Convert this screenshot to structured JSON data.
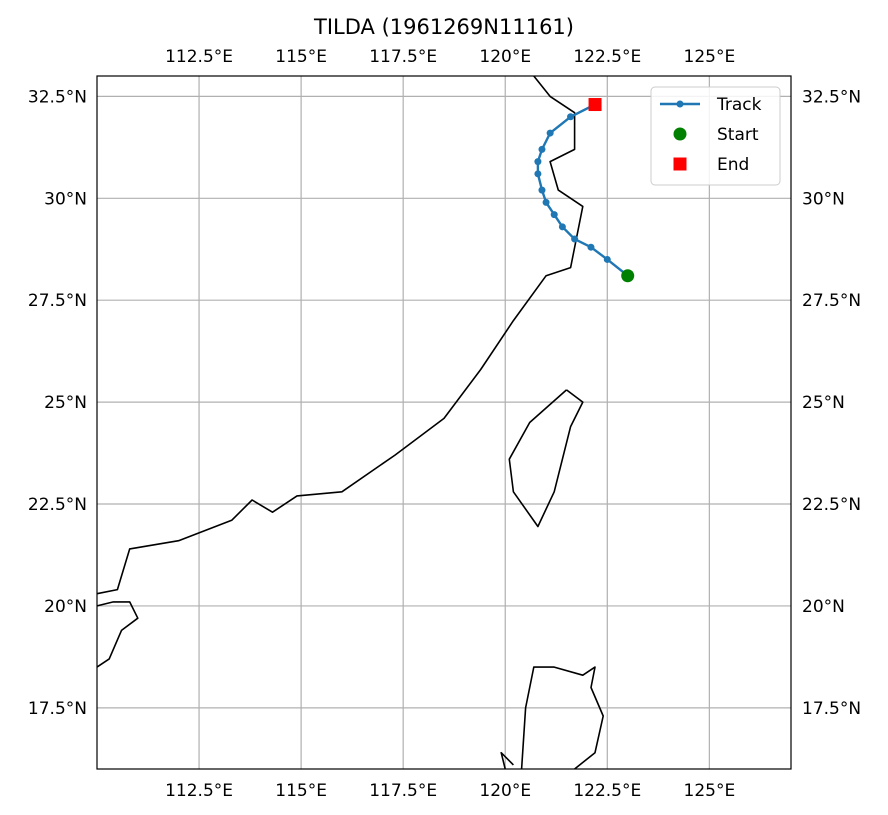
{
  "title": "TILDA (1961269N11161)",
  "chart_data": {
    "type": "map-track",
    "title": "TILDA (1961269N11161)",
    "xlim": [
      110.0,
      127.0
    ],
    "ylim": [
      16.0,
      33.0
    ],
    "grid": true,
    "legend_position": "top-right",
    "x_ticks": [
      {
        "value": 112.5,
        "label": "112.5°E"
      },
      {
        "value": 115.0,
        "label": "115°E"
      },
      {
        "value": 117.5,
        "label": "117.5°E"
      },
      {
        "value": 120.0,
        "label": "120°E"
      },
      {
        "value": 122.5,
        "label": "122.5°E"
      },
      {
        "value": 125.0,
        "label": "125°E"
      }
    ],
    "y_ticks": [
      {
        "value": 17.5,
        "label": "17.5°N"
      },
      {
        "value": 20.0,
        "label": "20°N"
      },
      {
        "value": 22.5,
        "label": "22.5°N"
      },
      {
        "value": 25.0,
        "label": "25°N"
      },
      {
        "value": 27.5,
        "label": "27.5°N"
      },
      {
        "value": 30.0,
        "label": "30°N"
      },
      {
        "value": 32.5,
        "label": "32.5°N"
      }
    ],
    "track": {
      "name": "Track",
      "color": "#1f77b4",
      "points": [
        [
          123.0,
          28.1
        ],
        [
          122.5,
          28.5
        ],
        [
          122.1,
          28.8
        ],
        [
          121.7,
          29.0
        ],
        [
          121.4,
          29.3
        ],
        [
          121.2,
          29.6
        ],
        [
          121.0,
          29.9
        ],
        [
          120.9,
          30.2
        ],
        [
          120.8,
          30.6
        ],
        [
          120.8,
          30.9
        ],
        [
          120.9,
          31.2
        ],
        [
          121.1,
          31.6
        ],
        [
          121.6,
          32.0
        ],
        [
          122.2,
          32.3
        ]
      ]
    },
    "start": {
      "name": "Start",
      "lon": 123.0,
      "lat": 28.1,
      "color": "#008000"
    },
    "end": {
      "name": "End",
      "lon": 122.2,
      "lat": 32.3,
      "color": "#ff0000"
    },
    "coastline_color": "#000000",
    "coastlines": [
      {
        "name": "mainland-coast",
        "points": [
          [
            120.7,
            33.0
          ],
          [
            121.1,
            32.5
          ],
          [
            121.7,
            32.1
          ],
          [
            121.7,
            31.2
          ],
          [
            121.1,
            30.9
          ],
          [
            121.3,
            30.2
          ],
          [
            121.9,
            29.8
          ],
          [
            121.6,
            28.3
          ],
          [
            121.0,
            28.1
          ],
          [
            120.2,
            27.0
          ],
          [
            119.4,
            25.8
          ],
          [
            118.5,
            24.6
          ],
          [
            117.3,
            23.7
          ],
          [
            116.0,
            22.8
          ],
          [
            114.9,
            22.7
          ],
          [
            114.3,
            22.3
          ],
          [
            113.8,
            22.6
          ],
          [
            113.3,
            22.1
          ],
          [
            112.0,
            21.6
          ],
          [
            110.8,
            21.4
          ],
          [
            110.5,
            20.4
          ],
          [
            110.0,
            20.3
          ]
        ]
      },
      {
        "name": "leizhou-coast",
        "points": [
          [
            110.0,
            20.0
          ],
          [
            110.4,
            20.1
          ],
          [
            110.8,
            20.1
          ],
          [
            111.0,
            19.7
          ],
          [
            110.6,
            19.4
          ],
          [
            110.3,
            18.7
          ],
          [
            110.0,
            18.5
          ]
        ]
      },
      {
        "name": "taiwan-coast",
        "points": [
          [
            121.5,
            25.3
          ],
          [
            121.9,
            25.0
          ],
          [
            121.6,
            24.4
          ],
          [
            121.2,
            22.8
          ],
          [
            120.8,
            21.95
          ],
          [
            120.2,
            22.8
          ],
          [
            120.1,
            23.6
          ],
          [
            120.6,
            24.5
          ],
          [
            121.5,
            25.3
          ]
        ]
      },
      {
        "name": "luzon-coast",
        "points": [
          [
            120.4,
            16.0
          ],
          [
            120.5,
            17.5
          ],
          [
            120.7,
            18.5
          ],
          [
            121.2,
            18.5
          ],
          [
            121.9,
            18.3
          ],
          [
            122.2,
            18.5
          ],
          [
            122.1,
            18.0
          ],
          [
            122.4,
            17.3
          ],
          [
            122.2,
            16.4
          ],
          [
            121.7,
            16.0
          ]
        ]
      },
      {
        "name": "lingayen-coast",
        "points": [
          [
            120.0,
            16.0
          ],
          [
            119.9,
            16.4
          ],
          [
            120.2,
            16.1
          ]
        ]
      }
    ]
  },
  "legend": {
    "items": [
      {
        "label": "Track",
        "color": "#1f77b4",
        "symbol": "line-dot"
      },
      {
        "label": "Start",
        "color": "#008000",
        "symbol": "circle"
      },
      {
        "label": "End",
        "color": "#ff0000",
        "symbol": "square"
      }
    ]
  }
}
